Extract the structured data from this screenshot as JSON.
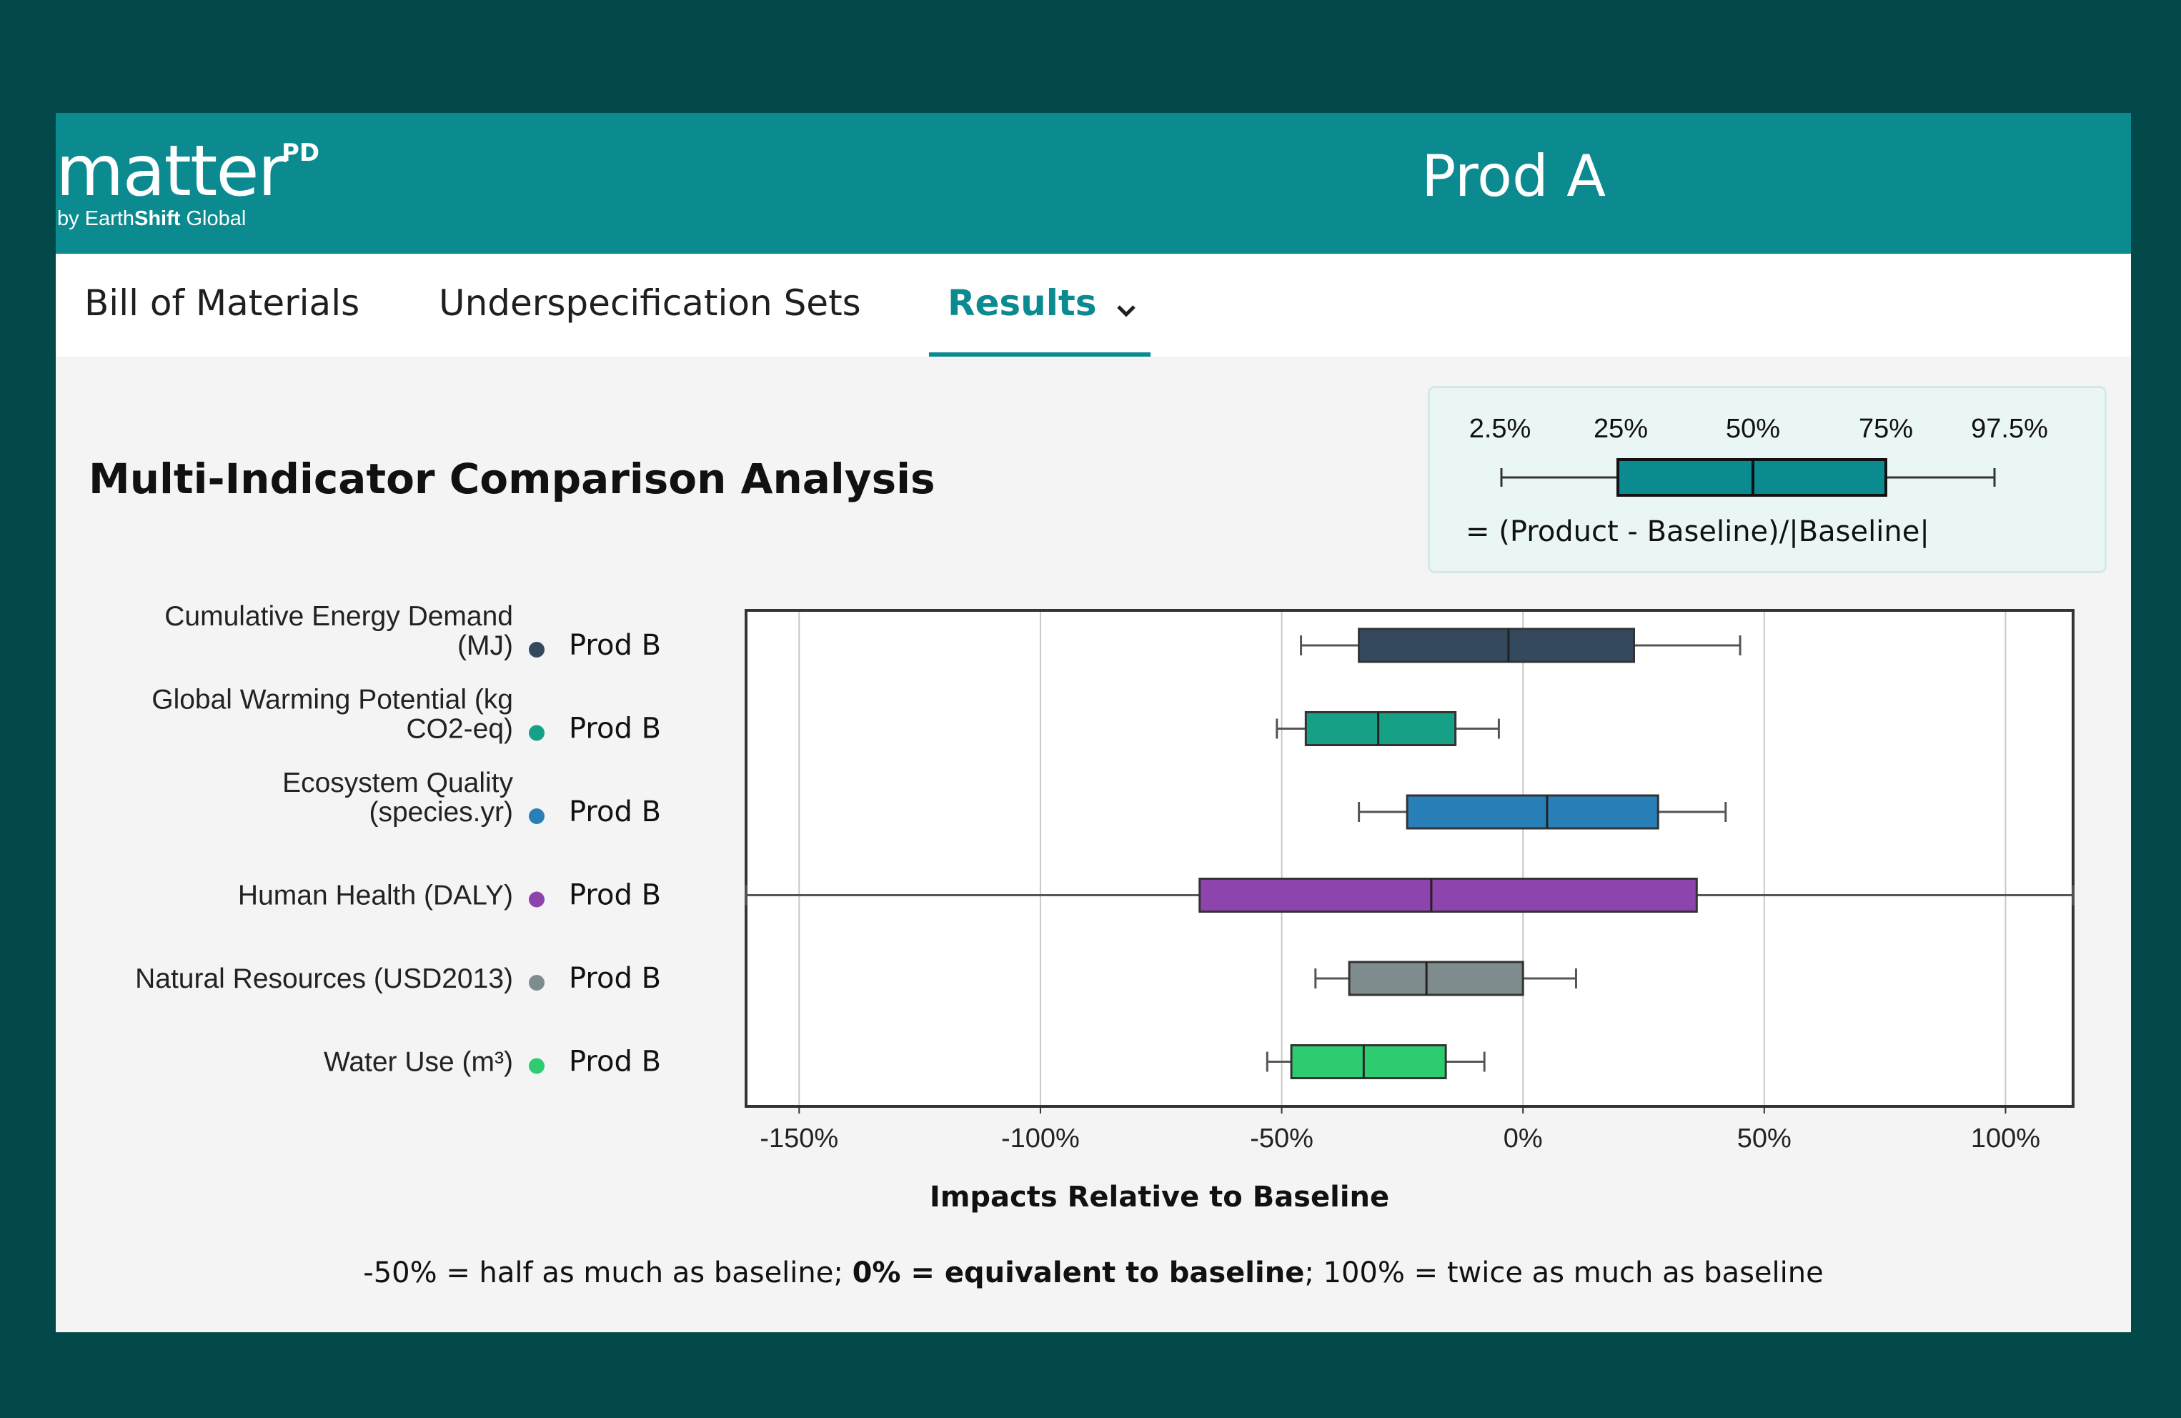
{
  "header": {
    "logo_word": "matter",
    "logo_sup": "PD",
    "logo_by_prefix": "by Earth",
    "logo_by_bold": "Shift",
    "logo_by_suffix": " Global",
    "product": "Prod A"
  },
  "nav": {
    "tabs": [
      {
        "label": "Bill of Materials"
      },
      {
        "label": "Underspecification Sets"
      },
      {
        "label": "Results"
      }
    ]
  },
  "page": {
    "title": "Multi-Indicator Comparison Analysis"
  },
  "legend": {
    "percentiles": [
      "2.5%",
      "25%",
      "50%",
      "75%",
      "97.5%"
    ],
    "formula": "= (Product - Baseline)/|Baseline|",
    "box_color": "#0b8a8f"
  },
  "footnote": {
    "part1": "-50% = half as much as baseline; ",
    "bold": "0% = equivalent to baseline",
    "part2": "; 100% = twice as much as baseline"
  },
  "chart_data": {
    "type": "boxplot",
    "orientation": "horizontal",
    "xlabel": "Impacts Relative to Baseline",
    "x_unit": "%",
    "xlim": [
      -161,
      114
    ],
    "xticks": [
      -150,
      -100,
      -50,
      0,
      50,
      100
    ],
    "xtick_labels": [
      "-150%",
      "-100%",
      "-50%",
      "0%",
      "50%",
      "100%"
    ],
    "grid": "vertical",
    "series": [
      {
        "indicator": "Cumulative Energy Demand (MJ)",
        "indicator_lines": [
          "Cumulative Energy Demand",
          "(MJ)"
        ],
        "product": "Prod B",
        "color": "#34495e",
        "whisker_low": -46,
        "q1": -34,
        "median": -3,
        "q3": 23,
        "whisker_high": 45
      },
      {
        "indicator": "Global Warming Potential (kg CO2-eq)",
        "indicator_lines": [
          "Global Warming Potential (kg",
          "CO2-eq)"
        ],
        "product": "Prod B",
        "color": "#16a085",
        "whisker_low": -51,
        "q1": -45,
        "median": -30,
        "q3": -14,
        "whisker_high": -5
      },
      {
        "indicator": "Ecosystem Quality (species.yr)",
        "indicator_lines": [
          "Ecosystem Quality",
          "(species.yr)"
        ],
        "product": "Prod B",
        "color": "#2980b9",
        "whisker_low": -34,
        "q1": -24,
        "median": 5,
        "q3": 28,
        "whisker_high": 42
      },
      {
        "indicator": "Human Health (DALY)",
        "indicator_lines": [
          "Human Health (DALY)"
        ],
        "product": "Prod B",
        "color": "#8e44ad",
        "whisker_low": -161,
        "q1": -67,
        "median": -19,
        "q3": 36,
        "whisker_high": 114
      },
      {
        "indicator": "Natural Resources (USD2013)",
        "indicator_lines": [
          "Natural Resources (USD2013)"
        ],
        "product": "Prod B",
        "color": "#7f8c8d",
        "whisker_low": -43,
        "q1": -36,
        "median": -20,
        "q3": 0,
        "whisker_high": 11
      },
      {
        "indicator": "Water Use (m³)",
        "indicator_lines": [
          "Water Use (m³)"
        ],
        "product": "Prod B",
        "color": "#2ecc71",
        "whisker_low": -53,
        "q1": -48,
        "median": -33,
        "q3": -16,
        "whisker_high": -8
      }
    ]
  }
}
